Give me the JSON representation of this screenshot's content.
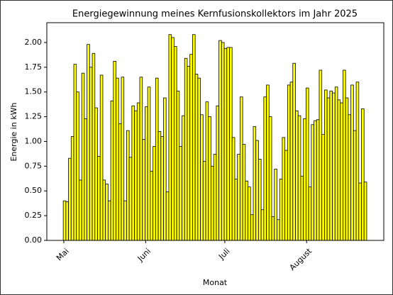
{
  "chart_data": {
    "type": "bar",
    "title": "Energiegewinnung meines Kernfusionskollektors im Jahr 2025",
    "x_label": "Monat",
    "y_label": "Energie in kWh",
    "color": "#ffff00",
    "edgecolor": "#000000",
    "categories": [
      "Mai",
      null,
      null,
      null,
      null,
      null,
      null,
      null,
      null,
      null,
      null,
      null,
      null,
      null,
      null,
      null,
      null,
      null,
      null,
      null,
      null,
      null,
      null,
      null,
      null,
      null,
      null,
      null,
      null,
      null,
      null,
      "Juni",
      null,
      null,
      null,
      null,
      null,
      null,
      null,
      null,
      null,
      null,
      null,
      null,
      null,
      null,
      null,
      null,
      null,
      null,
      null,
      null,
      null,
      null,
      null,
      null,
      null,
      null,
      null,
      null,
      null,
      "Juli",
      null,
      null,
      null,
      null,
      null,
      null,
      null,
      null,
      null,
      null,
      null,
      null,
      null,
      null,
      null,
      null,
      null,
      null,
      null,
      null,
      null,
      null,
      null,
      null,
      null,
      null,
      null,
      null,
      null,
      null,
      "August",
      null,
      null,
      null,
      null,
      null,
      null,
      null,
      null,
      null,
      null,
      null,
      null,
      null,
      null,
      null,
      null,
      null,
      null,
      null,
      null,
      null,
      null
    ],
    "values": [
      0.4,
      0.39,
      0.83,
      1.05,
      1.78,
      1.5,
      0.61,
      1.69,
      1.23,
      1.98,
      1.75,
      1.89,
      1.34,
      0.85,
      1.67,
      0.61,
      0.57,
      0.4,
      1.41,
      1.81,
      1.64,
      1.18,
      1.65,
      0.4,
      1.11,
      0.84,
      1.36,
      1.31,
      1.39,
      1.65,
      1.02,
      1.35,
      1.55,
      0.7,
      0.95,
      1.64,
      1.1,
      1.05,
      1.44,
      0.49,
      2.08,
      2.05,
      1.96,
      1.51,
      0.95,
      1.26,
      1.84,
      1.76,
      1.88,
      2.08,
      1.68,
      1.64,
      1.27,
      0.8,
      1.4,
      1.25,
      0.75,
      0.87,
      1.36,
      2.02,
      2.0,
      1.94,
      1.95,
      1.95,
      1.04,
      0.62,
      0.87,
      1.45,
      0.97,
      0.6,
      0.54,
      0.26,
      1.15,
      1.01,
      0.82,
      0.31,
      1.45,
      1.57,
      1.25,
      0.24,
      0.72,
      0.21,
      0.62,
      1.04,
      0.91,
      1.57,
      1.6,
      1.79,
      1.31,
      1.26,
      0.65,
      1.23,
      1.54,
      0.54,
      1.17,
      1.21,
      1.22,
      1.72,
      1.07,
      1.52,
      1.44,
      1.51,
      1.49,
      1.55,
      1.42,
      1.39,
      1.72,
      1.44,
      1.27,
      1.57,
      1.11,
      1.6,
      0.58,
      1.33,
      0.59
    ],
    "ylim": [
      0,
      2.2
    ],
    "yticks": [
      {
        "value": 0,
        "label": "0.00"
      },
      {
        "value": 0.25,
        "label": "0.25"
      },
      {
        "value": 0.5,
        "label": "0.50"
      },
      {
        "value": 0.75,
        "label": "0.75"
      },
      {
        "value": 1,
        "label": "1.00"
      },
      {
        "value": 1.25,
        "label": "1.25"
      },
      {
        "value": 1.5,
        "label": "1.50"
      },
      {
        "value": 1.75,
        "label": "1.75"
      },
      {
        "value": 2,
        "label": "2.00"
      }
    ],
    "grid": false
  }
}
